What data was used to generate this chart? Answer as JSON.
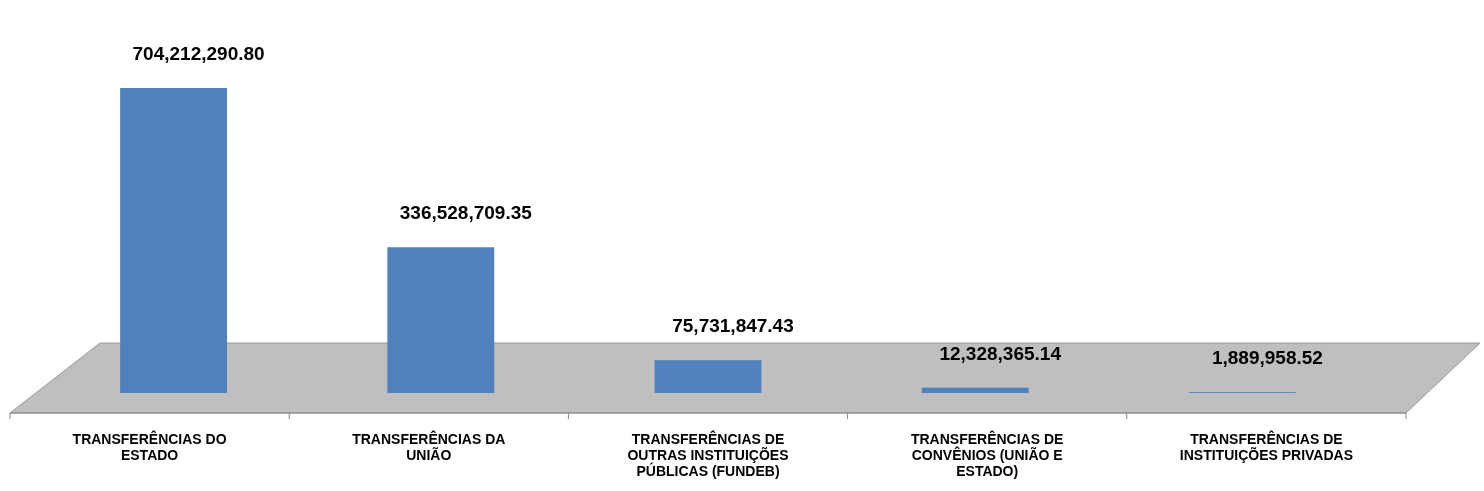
{
  "chart_data": {
    "type": "bar",
    "categories": [
      "TRANSFERÊNCIAS DO ESTADO",
      "TRANSFERÊNCIAS DA UNIÃO",
      "TRANSFERÊNCIAS DE OUTRAS INSTITUIÇÕES PÚBLICAS (FUNDEB)",
      "TRANSFERÊNCIAS DE CONVÊNIOS (UNIÃO E ESTADO)",
      "TRANSFERÊNCIAS DE INSTITUIÇÕES PRIVADAS"
    ],
    "values": [
      704212290.8,
      336528709.35,
      75731847.43,
      12328365.14,
      1889958.52
    ],
    "value_labels": [
      "704,212,290.80",
      "336,528,709.35",
      "75,731,847.43",
      "12,328,365.14",
      "1,889,958.52"
    ],
    "color": "#4f81bd"
  }
}
